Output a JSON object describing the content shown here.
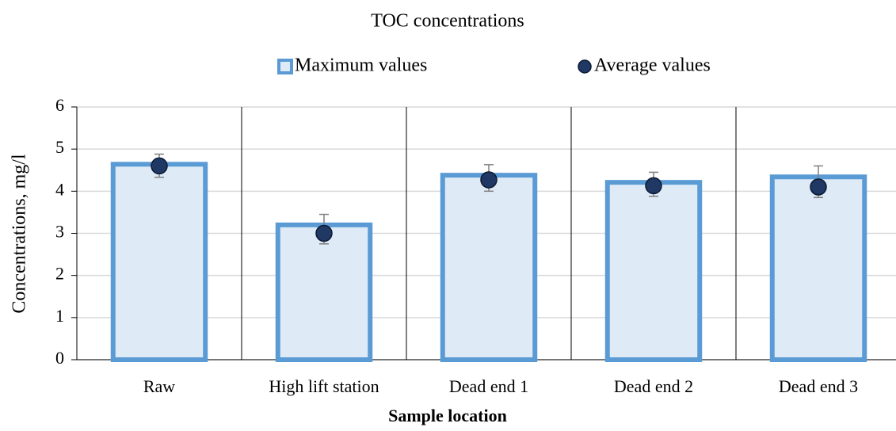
{
  "chart_data": {
    "type": "bar",
    "title": "TOC concentrations",
    "x_label": "Sample location",
    "y_label": "Concentrations, mg/l",
    "categories": [
      "Raw",
      "High lift station",
      "Dead end 1",
      "Dead end 2",
      "Dead end 3"
    ],
    "series": [
      {
        "name": "Maximum values",
        "type": "bar",
        "color": "#5b9bd5",
        "fill": "#deebf7",
        "values": [
          4.64,
          3.2,
          4.38,
          4.21,
          4.34
        ]
      },
      {
        "name": "Average values",
        "type": "scatter",
        "color": "#1f3864",
        "error_color": "#7f7f7f",
        "values": [
          4.6,
          3.0,
          4.27,
          4.13,
          4.1
        ],
        "errors_upper": [
          0.28,
          0.45,
          0.36,
          0.32,
          0.5
        ],
        "errors_lower": [
          0.27,
          0.25,
          0.27,
          0.25,
          0.25
        ]
      }
    ],
    "ylim": [
      0,
      6
    ],
    "yticks": [
      0,
      1,
      2,
      3,
      4,
      5,
      6
    ],
    "grid": true,
    "legend": "top"
  }
}
